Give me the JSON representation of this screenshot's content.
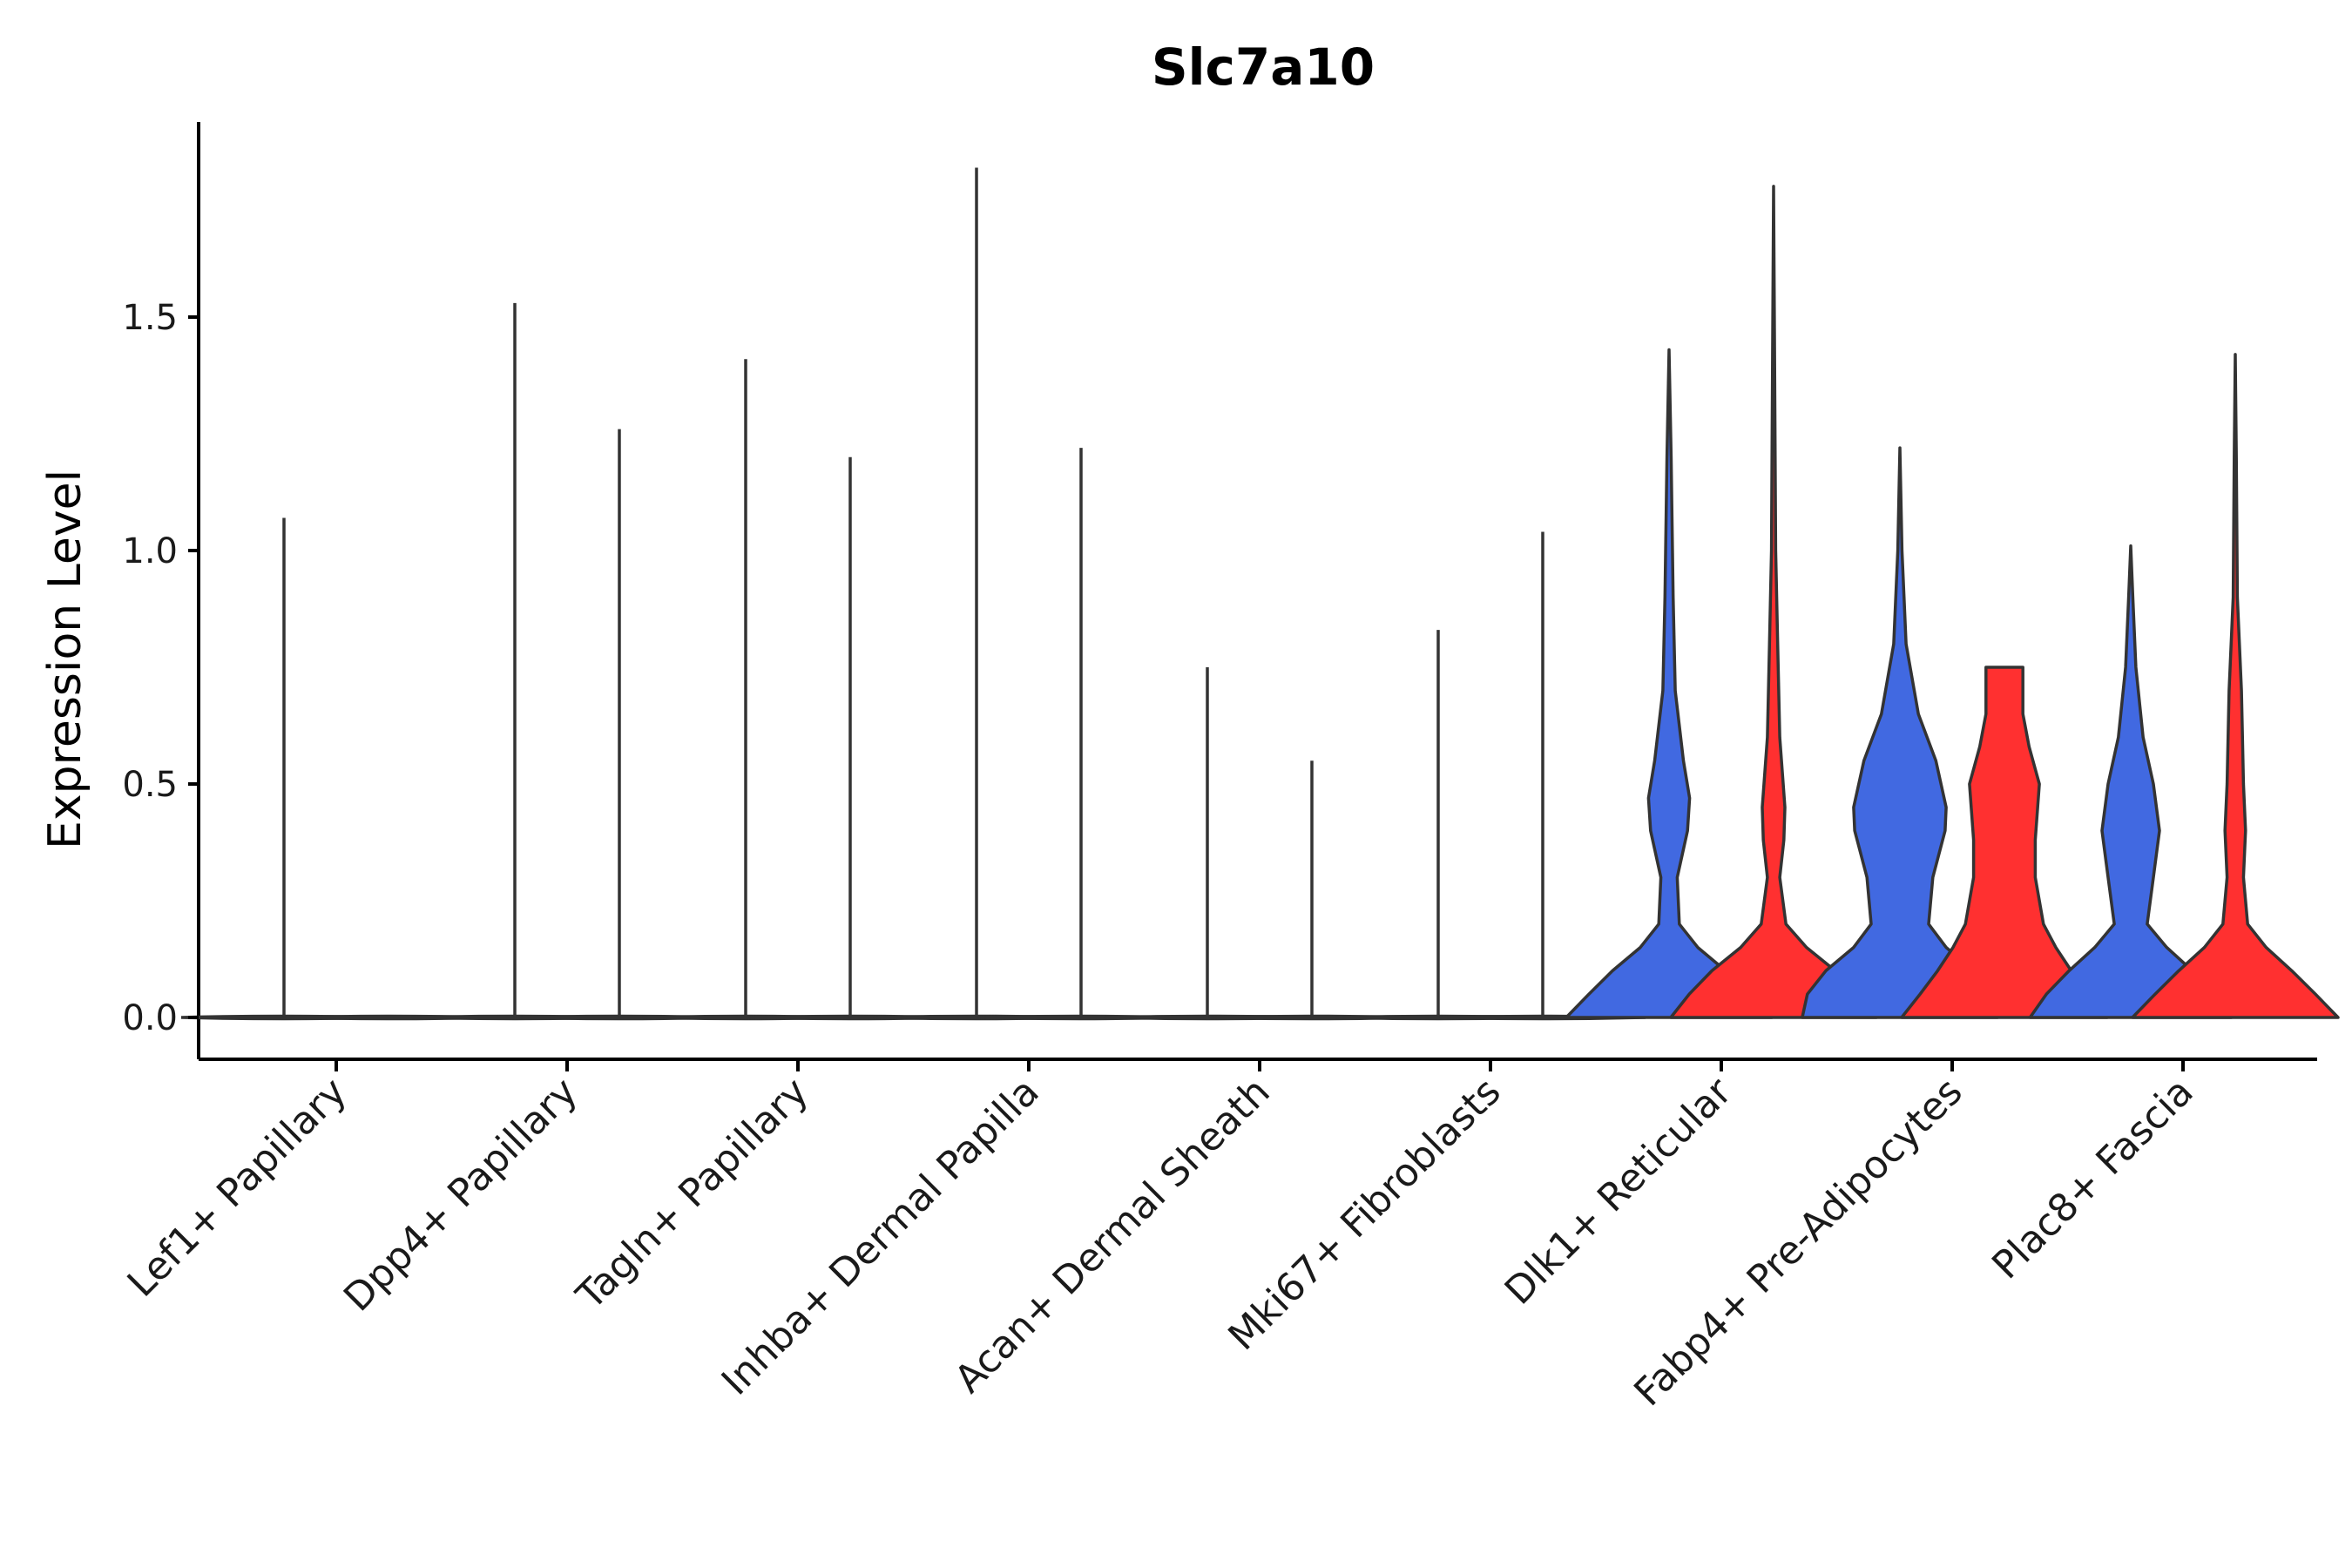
{
  "chart_data": {
    "type": "violin",
    "title": "Slc7a10",
    "xlabel": "",
    "ylabel": "Expression Level",
    "ylim": [
      -0.09,
      1.92
    ],
    "yticks": [
      0.0,
      0.5,
      1.0,
      1.5
    ],
    "ytick_labels": [
      "0.0",
      "0.5",
      "1.0",
      "1.5"
    ],
    "grid": false,
    "legend": "none",
    "colors": {
      "group1": "#4169E1",
      "group2": "#FF3030",
      "outline": "#333333"
    },
    "categories": [
      "Lef1+ Papillary",
      "Dpp4+ Papillary",
      "Tagln+ Papillary",
      "Inhba+ Dermal Papilla",
      "Acan+ Dermal Sheath",
      "Mki67+ Fibroblasts",
      "Dlk1+ Reticular",
      "Fabp4+ Pre-Adipocytes",
      "Plac8+ Fascia"
    ],
    "series": [
      {
        "name": "group1",
        "fill": false,
        "max_values": [
          1.07,
          1.53,
          1.41,
          1.82,
          0.75,
          0.83,
          1.43,
          1.22,
          1.01
        ]
      },
      {
        "name": "group2",
        "fill": false,
        "max_values": [
          0.0,
          1.26,
          1.2,
          1.22,
          0.55,
          1.04,
          1.78,
          0.75,
          1.42
        ]
      }
    ],
    "filled_categories": [
      "Dlk1+ Reticular",
      "Fabp4+ Pre-Adipocytes",
      "Plac8+ Fascia"
    ],
    "density_profiles": {
      "Dlk1+ Reticular": {
        "group1": [
          [
            0.0,
            1.0
          ],
          [
            0.05,
            0.78
          ],
          [
            0.1,
            0.55
          ],
          [
            0.15,
            0.28
          ],
          [
            0.2,
            0.1
          ],
          [
            0.3,
            0.08
          ],
          [
            0.4,
            0.18
          ],
          [
            0.47,
            0.2
          ],
          [
            0.55,
            0.14
          ],
          [
            0.7,
            0.06
          ],
          [
            0.9,
            0.04
          ],
          [
            1.2,
            0.02
          ],
          [
            1.43,
            0.0
          ]
        ],
        "group2": [
          [
            0.0,
            1.0
          ],
          [
            0.05,
            0.82
          ],
          [
            0.1,
            0.6
          ],
          [
            0.15,
            0.32
          ],
          [
            0.2,
            0.12
          ],
          [
            0.3,
            0.06
          ],
          [
            0.38,
            0.1
          ],
          [
            0.45,
            0.11
          ],
          [
            0.6,
            0.06
          ],
          [
            0.8,
            0.04
          ],
          [
            1.0,
            0.02
          ],
          [
            1.4,
            0.01
          ],
          [
            1.78,
            0.0
          ]
        ]
      },
      "Fabp4+ Pre-Adipocytes": {
        "group1": [
          [
            0.0,
            0.95
          ],
          [
            0.05,
            0.9
          ],
          [
            0.1,
            0.72
          ],
          [
            0.15,
            0.45
          ],
          [
            0.2,
            0.28
          ],
          [
            0.3,
            0.32
          ],
          [
            0.4,
            0.44
          ],
          [
            0.45,
            0.45
          ],
          [
            0.55,
            0.35
          ],
          [
            0.65,
            0.18
          ],
          [
            0.8,
            0.06
          ],
          [
            1.0,
            0.02
          ],
          [
            1.22,
            0.0
          ]
        ],
        "group2": [
          [
            0.0,
            1.0
          ],
          [
            0.05,
            0.82
          ],
          [
            0.1,
            0.65
          ],
          [
            0.15,
            0.5
          ],
          [
            0.2,
            0.38
          ],
          [
            0.3,
            0.3
          ],
          [
            0.38,
            0.3
          ],
          [
            0.5,
            0.34
          ],
          [
            0.58,
            0.24
          ],
          [
            0.65,
            0.18
          ],
          [
            0.75,
            0.18
          ],
          [
            0.75,
            0.0
          ]
        ]
      },
      "Plac8+ Fascia": {
        "group1": [
          [
            0.0,
            0.98
          ],
          [
            0.05,
            0.82
          ],
          [
            0.1,
            0.6
          ],
          [
            0.15,
            0.35
          ],
          [
            0.2,
            0.16
          ],
          [
            0.3,
            0.22
          ],
          [
            0.4,
            0.28
          ],
          [
            0.5,
            0.22
          ],
          [
            0.6,
            0.12
          ],
          [
            0.75,
            0.05
          ],
          [
            0.9,
            0.02
          ],
          [
            1.01,
            0.0
          ]
        ],
        "group2": [
          [
            0.0,
            1.0
          ],
          [
            0.05,
            0.78
          ],
          [
            0.1,
            0.55
          ],
          [
            0.15,
            0.3
          ],
          [
            0.2,
            0.12
          ],
          [
            0.3,
            0.08
          ],
          [
            0.4,
            0.1
          ],
          [
            0.5,
            0.08
          ],
          [
            0.7,
            0.06
          ],
          [
            0.9,
            0.02
          ],
          [
            1.2,
            0.01
          ],
          [
            1.42,
            0.0
          ]
        ]
      }
    }
  }
}
